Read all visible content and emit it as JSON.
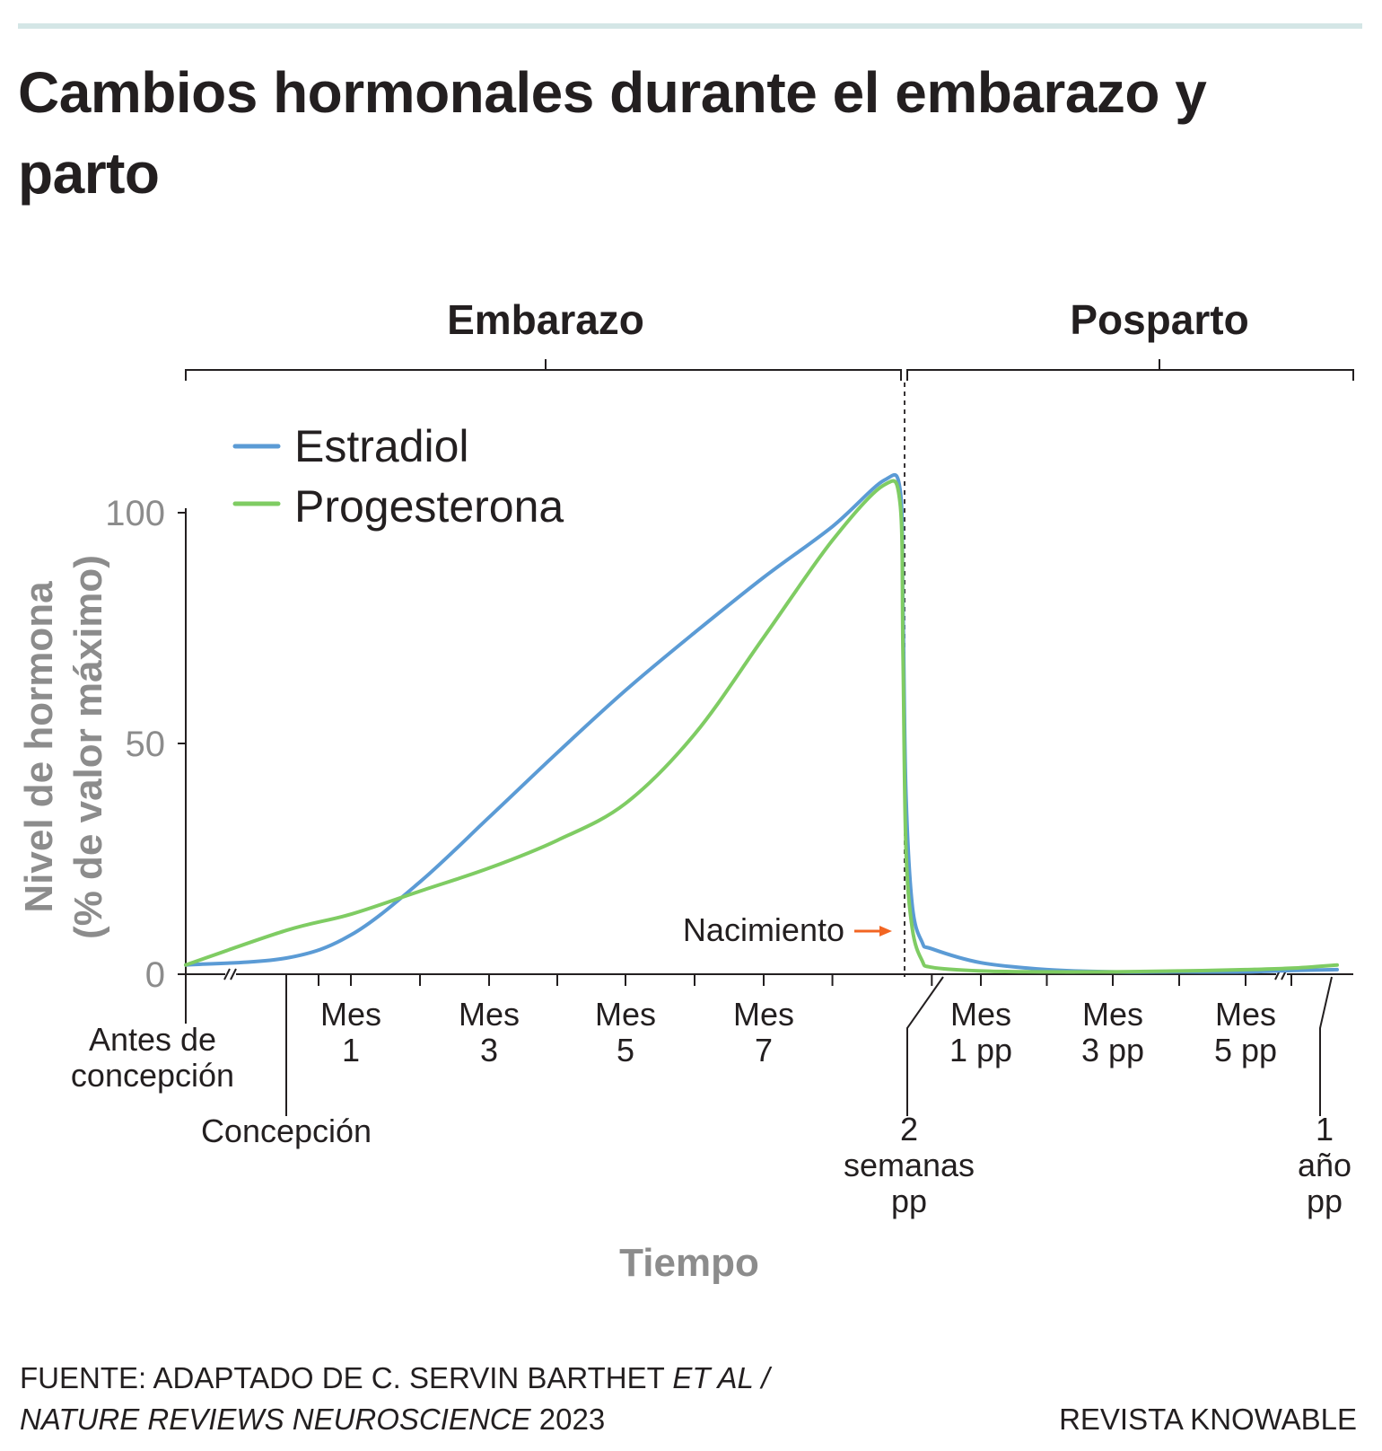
{
  "title": "Cambios hormonales durante el embarazo y parto",
  "colors": {
    "estradiol": "#5b9bd5",
    "progesterona": "#7fcc63",
    "axis_gray": "#8c8c8c",
    "arrow": "#f26522",
    "text": "#231f20",
    "topbar": "#d4e6e6"
  },
  "periods": {
    "pregnancy": "Embarazo",
    "postpartum": "Posparto"
  },
  "birth_label": "Nacimiento",
  "chart_data": {
    "type": "line",
    "ylabel": [
      "Nivel de hormona",
      "(% de valor máximo)"
    ],
    "xlabel": "Tiempo",
    "ylim": [
      0,
      100
    ],
    "yticks": [
      "0",
      "50",
      "100"
    ],
    "grid": false,
    "legend_position": "top-left",
    "x_milestones": [
      {
        "label": [
          "Antes de",
          "concepción"
        ],
        "x": -1
      },
      {
        "label": [
          "Concepción"
        ],
        "x": 0
      },
      {
        "label": [
          "Mes",
          "1"
        ],
        "x": 1
      },
      {
        "label": [
          "Mes",
          "3"
        ],
        "x": 3
      },
      {
        "label": [
          "Mes",
          "5"
        ],
        "x": 5
      },
      {
        "label": [
          "Mes",
          "7"
        ],
        "x": 7
      },
      {
        "label": [
          "2",
          "semanas",
          "pp"
        ],
        "x": 9.5
      },
      {
        "label": [
          "Mes",
          "1 pp"
        ],
        "x": 11
      },
      {
        "label": [
          "Mes",
          "3 pp"
        ],
        "x": 13
      },
      {
        "label": [
          "Mes",
          "5 pp"
        ],
        "x": 15
      },
      {
        "label": [
          "1",
          "año",
          "pp"
        ],
        "x": 17
      }
    ],
    "series": [
      {
        "name": "Estradiol",
        "points": [
          [
            -1.5,
            2
          ],
          [
            0,
            3.5
          ],
          [
            1,
            8.5
          ],
          [
            2,
            20
          ],
          [
            3,
            34
          ],
          [
            4,
            48
          ],
          [
            5,
            61.5
          ],
          [
            6,
            74
          ],
          [
            7,
            86
          ],
          [
            8,
            97
          ],
          [
            8.75,
            107
          ],
          [
            9,
            105
          ],
          [
            9.2,
            80
          ],
          [
            9.4,
            40
          ],
          [
            9.6,
            15
          ],
          [
            9.8,
            7
          ],
          [
            10,
            5.5
          ],
          [
            11,
            2.5
          ],
          [
            12,
            1
          ],
          [
            13,
            0.5
          ],
          [
            14,
            0.5
          ],
          [
            15,
            0.5
          ],
          [
            16,
            0.8
          ],
          [
            17,
            1
          ]
        ]
      },
      {
        "name": "Progesterona",
        "points": [
          [
            -1.5,
            2
          ],
          [
            0,
            9.5
          ],
          [
            1,
            13
          ],
          [
            2,
            18
          ],
          [
            3,
            23
          ],
          [
            4,
            29
          ],
          [
            5,
            37
          ],
          [
            6,
            52
          ],
          [
            7,
            73
          ],
          [
            8,
            94
          ],
          [
            8.75,
            106
          ],
          [
            9,
            102
          ],
          [
            9.2,
            70
          ],
          [
            9.4,
            28
          ],
          [
            9.6,
            10
          ],
          [
            9.8,
            3
          ],
          [
            10,
            1.5
          ],
          [
            11,
            0.7
          ],
          [
            12,
            0.5
          ],
          [
            13,
            0.5
          ],
          [
            14,
            0.7
          ],
          [
            15,
            1
          ],
          [
            16,
            1.3
          ],
          [
            17,
            2
          ]
        ]
      }
    ]
  },
  "source": {
    "prefix": "FUENTE: ADAPTADO DE C. SERVIN BARTHET ",
    "italic1": "ET AL /",
    "italic2": "NATURE REVIEWS NEUROSCIENCE",
    "year": " 2023"
  },
  "brand": "REVISTA KNOWABLE"
}
